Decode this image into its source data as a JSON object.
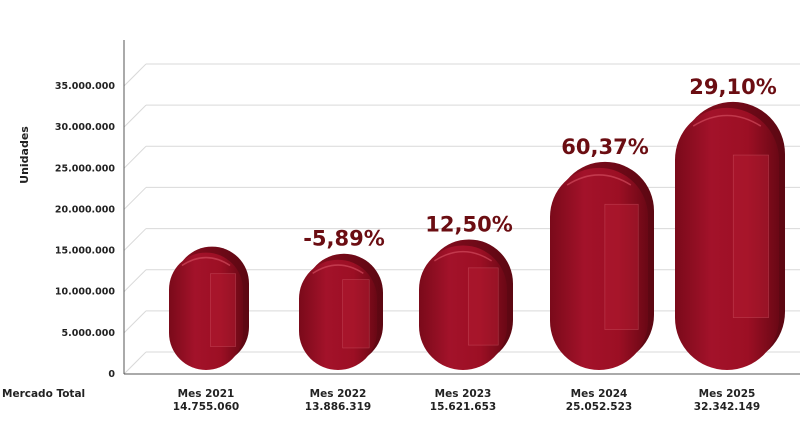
{
  "chart_data": {
    "type": "bar",
    "ylabel": "Unidades",
    "row_label": "Mercado Total",
    "categories": [
      "Mes 2021",
      "Mes 2022",
      "Mes 2023",
      "Mes 2024",
      "Mes 2025"
    ],
    "values": [
      14755060,
      13886319,
      15621653,
      25052523,
      32342149
    ],
    "value_labels": [
      "14.755.060",
      "13.886.319",
      "15.621.653",
      "25.052.523",
      "32.342.149"
    ],
    "change_labels": [
      "",
      "-5,89%",
      "12,50%",
      "60,37%",
      "29,10%"
    ],
    "ylim": [
      0,
      35000000
    ],
    "yticks": [
      0,
      5000000,
      10000000,
      15000000,
      20000000,
      25000000,
      30000000,
      35000000
    ],
    "ytick_labels": [
      "0",
      "5.000.000",
      "10.000.000",
      "15.000.000",
      "20.000.000",
      "25.000.000",
      "30.000.000",
      "35.000.000"
    ],
    "grid": true,
    "colors": {
      "bar": "#9c0f24",
      "bar_dark": "#6e0a18",
      "bar_light": "#c42a40",
      "percent": "#6b0d12",
      "grid": "#d9d9d9",
      "axis": "#555555"
    }
  }
}
